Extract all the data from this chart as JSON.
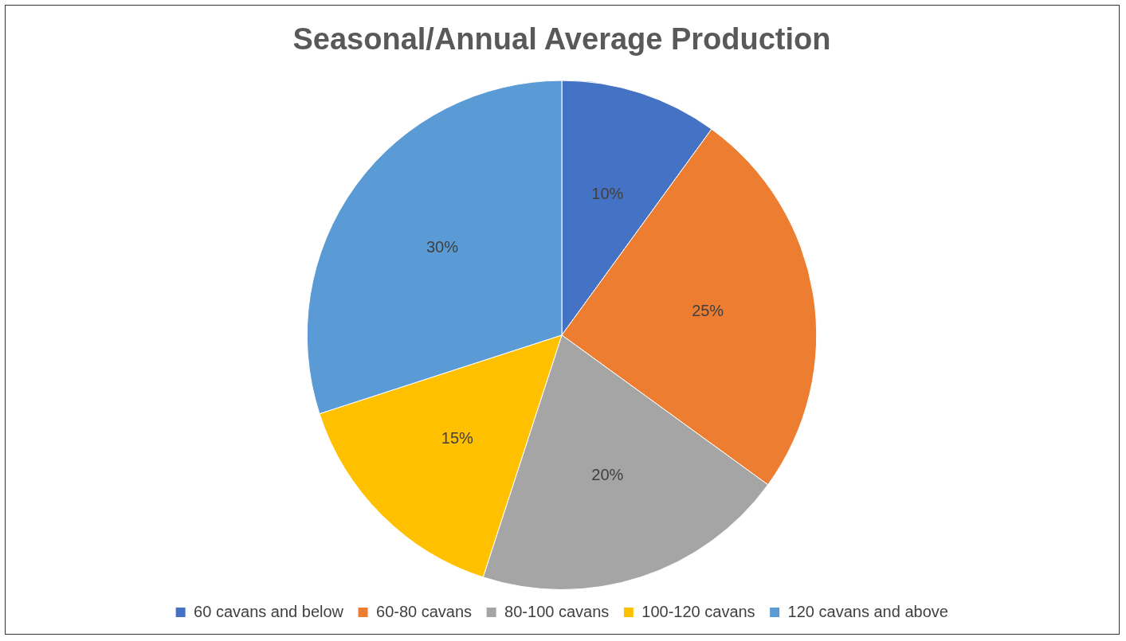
{
  "chart_data": {
    "type": "pie",
    "title": "Seasonal/Annual Average Production",
    "categories": [
      "60 cavans and below",
      "60-80 cavans",
      "80-100 cavans",
      "100-120 cavans",
      "120 cavans and above"
    ],
    "values": [
      10,
      25,
      20,
      15,
      30
    ],
    "colors": [
      "#4472c4",
      "#ed7d31",
      "#a5a5a5",
      "#ffc000",
      "#5b9bd5"
    ],
    "value_labels": [
      "10%",
      "25%",
      "20%",
      "15%",
      "30%"
    ],
    "legend": "bottom"
  }
}
